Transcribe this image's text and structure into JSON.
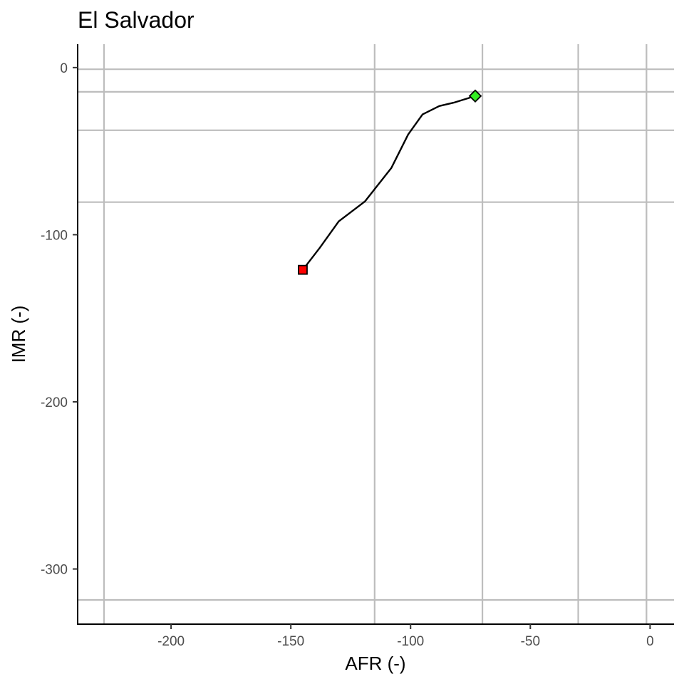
{
  "chart_data": {
    "type": "line",
    "title": "El Salvador",
    "xlabel": "AFR (-)",
    "ylabel": "IMR (-)",
    "xlim": [
      -239,
      10
    ],
    "ylim": [
      -333,
      14
    ],
    "x_ticks": [
      -200,
      -150,
      -100,
      -50,
      0
    ],
    "y_ticks": [
      0,
      -100,
      -200,
      -300
    ],
    "reference_lines": {
      "vertical_x": [
        -228,
        -115,
        -70,
        -30,
        -1.5
      ],
      "horizontal_y": [
        -1,
        -14.5,
        -37.5,
        -80.5,
        -318.5
      ]
    },
    "series": [
      {
        "points": [
          {
            "x": -145,
            "y": -121
          },
          {
            "x": -138,
            "y": -108
          },
          {
            "x": -130,
            "y": -92
          },
          {
            "x": -119,
            "y": -80
          },
          {
            "x": -108,
            "y": -60
          },
          {
            "x": -101,
            "y": -40
          },
          {
            "x": -95,
            "y": -28
          },
          {
            "x": -88,
            "y": -23
          },
          {
            "x": -82,
            "y": -21
          },
          {
            "x": -73,
            "y": -17
          }
        ]
      }
    ],
    "start_marker": {
      "shape": "square",
      "color": "#ff0000"
    },
    "end_marker": {
      "shape": "diamond",
      "color": "#33ee22"
    },
    "grid": false,
    "legend": "none"
  }
}
